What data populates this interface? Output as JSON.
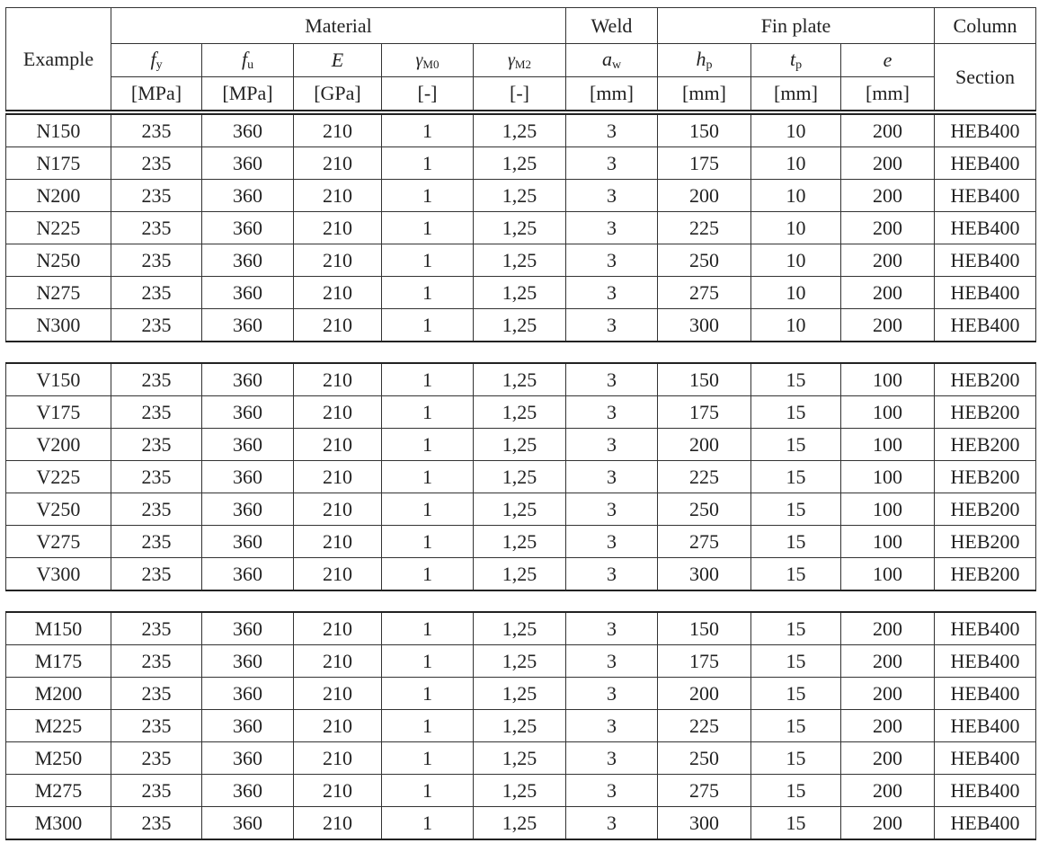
{
  "header": {
    "example": "Example",
    "material": "Material",
    "weld": "Weld",
    "fin_plate": "Fin plate",
    "column": "Column",
    "section": "Section",
    "symbols": [
      {
        "sym": "f",
        "sub": "y"
      },
      {
        "sym": "f",
        "sub": "u"
      },
      {
        "sym": "E",
        "sub": ""
      },
      {
        "sym": "γ",
        "sub": "M0"
      },
      {
        "sym": "γ",
        "sub": "M2"
      },
      {
        "sym": "a",
        "sub": "w"
      },
      {
        "sym": "h",
        "sub": "p"
      },
      {
        "sym": "t",
        "sub": "p"
      },
      {
        "sym": "e",
        "sub": ""
      }
    ],
    "units": [
      "[MPa]",
      "[MPa]",
      "[GPa]",
      "[-]",
      "[-]",
      "[mm]",
      "[mm]",
      "[mm]",
      "[mm]"
    ]
  },
  "groups": [
    {
      "rows": [
        [
          "N150",
          "235",
          "360",
          "210",
          "1",
          "1,25",
          "3",
          "150",
          "10",
          "200",
          "HEB400"
        ],
        [
          "N175",
          "235",
          "360",
          "210",
          "1",
          "1,25",
          "3",
          "175",
          "10",
          "200",
          "HEB400"
        ],
        [
          "N200",
          "235",
          "360",
          "210",
          "1",
          "1,25",
          "3",
          "200",
          "10",
          "200",
          "HEB400"
        ],
        [
          "N225",
          "235",
          "360",
          "210",
          "1",
          "1,25",
          "3",
          "225",
          "10",
          "200",
          "HEB400"
        ],
        [
          "N250",
          "235",
          "360",
          "210",
          "1",
          "1,25",
          "3",
          "250",
          "10",
          "200",
          "HEB400"
        ],
        [
          "N275",
          "235",
          "360",
          "210",
          "1",
          "1,25",
          "3",
          "275",
          "10",
          "200",
          "HEB400"
        ],
        [
          "N300",
          "235",
          "360",
          "210",
          "1",
          "1,25",
          "3",
          "300",
          "10",
          "200",
          "HEB400"
        ]
      ]
    },
    {
      "rows": [
        [
          "V150",
          "235",
          "360",
          "210",
          "1",
          "1,25",
          "3",
          "150",
          "15",
          "100",
          "HEB200"
        ],
        [
          "V175",
          "235",
          "360",
          "210",
          "1",
          "1,25",
          "3",
          "175",
          "15",
          "100",
          "HEB200"
        ],
        [
          "V200",
          "235",
          "360",
          "210",
          "1",
          "1,25",
          "3",
          "200",
          "15",
          "100",
          "HEB200"
        ],
        [
          "V225",
          "235",
          "360",
          "210",
          "1",
          "1,25",
          "3",
          "225",
          "15",
          "100",
          "HEB200"
        ],
        [
          "V250",
          "235",
          "360",
          "210",
          "1",
          "1,25",
          "3",
          "250",
          "15",
          "100",
          "HEB200"
        ],
        [
          "V275",
          "235",
          "360",
          "210",
          "1",
          "1,25",
          "3",
          "275",
          "15",
          "100",
          "HEB200"
        ],
        [
          "V300",
          "235",
          "360",
          "210",
          "1",
          "1,25",
          "3",
          "300",
          "15",
          "100",
          "HEB200"
        ]
      ]
    },
    {
      "rows": [
        [
          "M150",
          "235",
          "360",
          "210",
          "1",
          "1,25",
          "3",
          "150",
          "15",
          "200",
          "HEB400"
        ],
        [
          "M175",
          "235",
          "360",
          "210",
          "1",
          "1,25",
          "3",
          "175",
          "15",
          "200",
          "HEB400"
        ],
        [
          "M200",
          "235",
          "360",
          "210",
          "1",
          "1,25",
          "3",
          "200",
          "15",
          "200",
          "HEB400"
        ],
        [
          "M225",
          "235",
          "360",
          "210",
          "1",
          "1,25",
          "3",
          "225",
          "15",
          "200",
          "HEB400"
        ],
        [
          "M250",
          "235",
          "360",
          "210",
          "1",
          "1,25",
          "3",
          "250",
          "15",
          "200",
          "HEB400"
        ],
        [
          "M275",
          "235",
          "360",
          "210",
          "1",
          "1,25",
          "3",
          "275",
          "15",
          "200",
          "HEB400"
        ],
        [
          "M300",
          "235",
          "360",
          "210",
          "1",
          "1,25",
          "3",
          "300",
          "15",
          "200",
          "HEB400"
        ]
      ]
    }
  ]
}
